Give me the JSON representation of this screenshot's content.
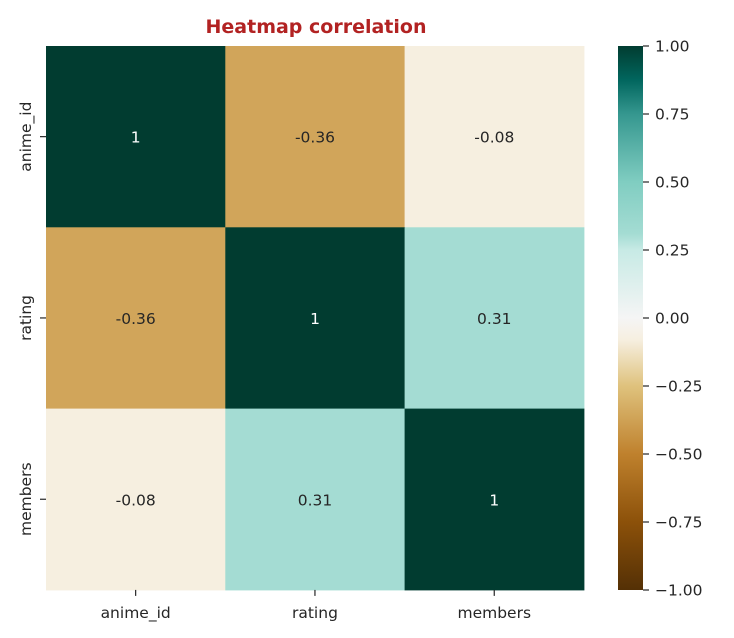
{
  "chart_data": {
    "type": "heatmap",
    "title": "Heatmap correlation",
    "title_color": "#b22222",
    "x_labels": [
      "anime_id",
      "rating",
      "members"
    ],
    "y_labels": [
      "anime_id",
      "rating",
      "members"
    ],
    "values": [
      [
        1,
        -0.36,
        -0.08
      ],
      [
        -0.36,
        1,
        0.31
      ],
      [
        -0.08,
        0.31,
        1
      ]
    ],
    "annotations": [
      [
        "1",
        "-0.36",
        "-0.08"
      ],
      [
        "-0.36",
        "1",
        "0.31"
      ],
      [
        "-0.08",
        "0.31",
        "1"
      ]
    ],
    "colormap": "BrBG",
    "colorbar": {
      "vmin": -1.0,
      "vmax": 1.0,
      "ticks": [
        1.0,
        0.75,
        0.5,
        0.25,
        0.0,
        -0.25,
        -0.5,
        -0.75,
        -1.0
      ],
      "tick_labels": [
        "1.00",
        "0.75",
        "0.50",
        "0.25",
        "0.00",
        "−0.25",
        "−0.50",
        "−0.75",
        "−1.00"
      ]
    }
  }
}
